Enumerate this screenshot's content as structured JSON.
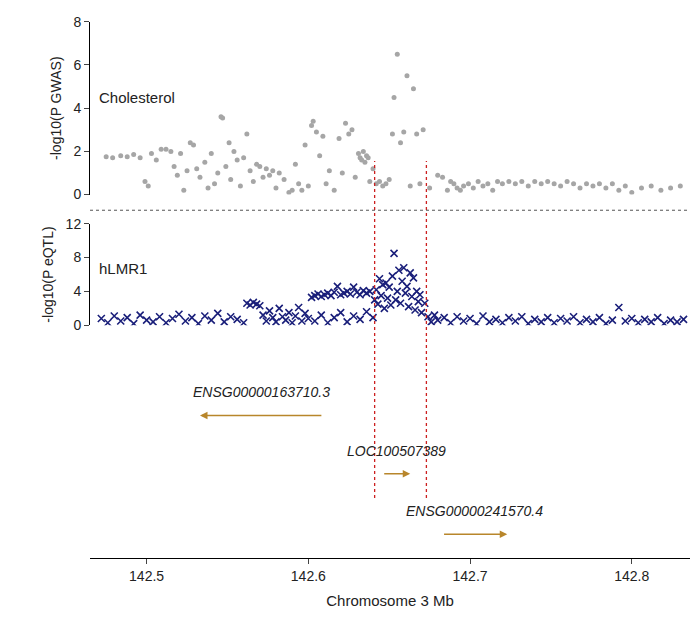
{
  "chart_data": [
    {
      "type": "scatter",
      "annotations": [
        "Cholesterol"
      ],
      "ylabel": "-log10(P GWAS)",
      "marker": "circle",
      "color": "#a6a6a6",
      "tick_labels": "y",
      "xlim": [
        142.465,
        142.836
      ],
      "ylim": [
        0,
        8
      ],
      "yticks": [
        0,
        2,
        4,
        6,
        8
      ],
      "x": [
        142.475,
        142.479,
        142.484,
        142.488,
        142.492,
        142.496,
        142.499,
        142.501,
        142.503,
        142.506,
        142.509,
        142.512,
        142.515,
        142.517,
        142.519,
        142.521,
        142.523,
        142.525,
        142.527,
        142.529,
        142.531,
        142.533,
        142.536,
        142.538,
        142.54,
        142.542,
        142.544,
        142.546,
        142.547,
        142.549,
        142.551,
        142.552,
        142.554,
        142.556,
        142.558,
        142.56,
        142.562,
        142.564,
        142.566,
        142.568,
        142.57,
        142.572,
        142.574,
        142.576,
        142.578,
        142.58,
        142.582,
        142.585,
        142.588,
        142.59,
        142.592,
        142.594,
        142.596,
        142.598,
        142.6,
        142.602,
        142.603,
        142.605,
        142.607,
        142.609,
        142.611,
        142.613,
        142.616,
        142.619,
        142.621,
        142.623,
        142.625,
        142.627,
        142.629,
        142.631,
        142.632,
        142.633,
        142.634,
        142.635,
        142.636,
        142.637,
        142.638,
        142.64,
        142.642,
        142.644,
        142.646,
        142.648,
        142.65,
        142.652,
        142.653,
        142.655,
        142.657,
        142.659,
        142.661,
        142.663,
        142.665,
        142.667,
        142.669,
        142.671,
        142.675,
        142.68,
        142.683,
        142.686,
        142.688,
        142.69,
        142.692,
        142.694,
        142.696,
        142.699,
        142.702,
        142.705,
        142.708,
        142.711,
        142.714,
        142.717,
        142.72,
        142.724,
        142.728,
        142.732,
        142.736,
        142.74,
        142.744,
        142.748,
        142.752,
        142.756,
        142.76,
        142.764,
        142.768,
        142.772,
        142.776,
        142.78,
        142.784,
        142.788,
        142.792,
        142.796,
        142.8,
        142.806,
        142.812,
        142.818,
        142.824,
        142.83
      ],
      "values": [
        1.75,
        1.7,
        1.8,
        1.75,
        1.85,
        1.7,
        0.6,
        0.4,
        1.9,
        1.6,
        2.1,
        2.1,
        2.0,
        1.3,
        0.9,
        1.9,
        0.2,
        1.1,
        2.4,
        2.3,
        1.2,
        0.8,
        1.5,
        0.3,
        1.9,
        0.5,
        1.0,
        3.6,
        3.55,
        1.3,
        2.4,
        0.7,
        2.0,
        1.6,
        0.4,
        1.7,
        2.8,
        1.1,
        0.6,
        1.4,
        1.3,
        0.8,
        1.2,
        0.9,
        1.1,
        0.3,
        1.0,
        0.7,
        0.1,
        0.2,
        1.4,
        0.5,
        0.2,
        2.3,
        0.4,
        3.2,
        3.4,
        2.9,
        1.8,
        2.7,
        0.5,
        1.1,
        0.2,
        2.6,
        1.0,
        3.3,
        2.8,
        3.0,
        0.8,
        1.9,
        1.7,
        1.6,
        2.0,
        1.5,
        1.8,
        1.7,
        0.6,
        1.2,
        0.5,
        0.6,
        0.4,
        0.5,
        0.7,
        2.8,
        4.5,
        6.5,
        2.4,
        2.9,
        5.5,
        0.4,
        4.9,
        2.8,
        0.5,
        3.0,
        0.3,
        0.9,
        0.8,
        0.2,
        0.6,
        0.5,
        0.3,
        0.2,
        0.4,
        0.5,
        0.3,
        0.6,
        0.4,
        0.5,
        0.2,
        0.6,
        0.5,
        0.6,
        0.5,
        0.6,
        0.4,
        0.6,
        0.5,
        0.6,
        0.5,
        0.4,
        0.6,
        0.5,
        0.3,
        0.5,
        0.4,
        0.5,
        0.3,
        0.5,
        0.2,
        0.4,
        0.1,
        0.3,
        0.4,
        0.2,
        0.3,
        0.4
      ]
    },
    {
      "type": "scatter",
      "annotations": [
        "hLMR1"
      ],
      "ylabel": "-log10(P eQTL)",
      "marker": "x",
      "color": "#1a1f7a",
      "tick_labels": "y",
      "xlim": [
        142.465,
        142.836
      ],
      "ylim": [
        0,
        12
      ],
      "yticks": [
        0,
        4,
        8,
        12
      ],
      "x": [
        142.472,
        142.476,
        142.48,
        142.484,
        142.488,
        142.492,
        142.496,
        142.5,
        142.504,
        142.508,
        142.512,
        142.516,
        142.52,
        142.524,
        142.528,
        142.532,
        142.536,
        142.54,
        142.544,
        142.548,
        142.552,
        142.556,
        142.56,
        142.562,
        142.564,
        142.566,
        142.568,
        142.57,
        142.572,
        142.574,
        142.576,
        142.578,
        142.58,
        142.582,
        142.584,
        142.586,
        142.588,
        142.59,
        142.592,
        142.594,
        142.596,
        142.598,
        142.6,
        142.602,
        142.604,
        142.606,
        142.608,
        142.61,
        142.612,
        142.614,
        142.616,
        142.618,
        142.62,
        142.622,
        142.624,
        142.626,
        142.628,
        142.63,
        142.632,
        142.634,
        142.636,
        142.638,
        142.604,
        142.608,
        142.612,
        142.616,
        142.62,
        142.624,
        142.628,
        142.632,
        142.636,
        142.64,
        142.641,
        142.642,
        142.643,
        142.644,
        142.645,
        142.646,
        142.647,
        142.648,
        142.649,
        142.65,
        142.651,
        142.652,
        142.653,
        142.654,
        142.655,
        142.656,
        142.657,
        142.658,
        142.659,
        142.66,
        142.661,
        142.662,
        142.663,
        142.664,
        142.665,
        142.666,
        142.667,
        142.668,
        142.669,
        142.67,
        142.672,
        142.674,
        142.676,
        142.678,
        142.68,
        142.684,
        142.688,
        142.692,
        142.696,
        142.7,
        142.704,
        142.708,
        142.712,
        142.716,
        142.72,
        142.724,
        142.728,
        142.732,
        142.736,
        142.74,
        142.744,
        142.748,
        142.752,
        142.756,
        142.76,
        142.764,
        142.768,
        142.772,
        142.776,
        142.78,
        142.784,
        142.788,
        142.792,
        142.796,
        142.8,
        142.804,
        142.808,
        142.812,
        142.816,
        142.82,
        142.824,
        142.828,
        142.832
      ],
      "values": [
        0.8,
        0.3,
        1.1,
        0.5,
        0.9,
        0.2,
        1.2,
        0.6,
        0.4,
        1.0,
        0.3,
        0.8,
        1.3,
        0.5,
        0.9,
        0.2,
        1.1,
        0.6,
        1.4,
        0.4,
        1.0,
        0.7,
        0.3,
        2.6,
        2.4,
        2.7,
        2.5,
        2.3,
        1.2,
        0.5,
        1.7,
        0.9,
        0.4,
        2.0,
        1.0,
        0.6,
        1.5,
        0.3,
        1.1,
        2.1,
        0.5,
        1.4,
        0.8,
        3.3,
        3.5,
        3.7,
        3.4,
        3.6,
        3.8,
        3.5,
        3.9,
        4.6,
        3.6,
        3.8,
        4.0,
        3.7,
        4.5,
        3.9,
        3.6,
        4.1,
        3.8,
        4.0,
        0.5,
        1.2,
        0.3,
        0.9,
        1.5,
        0.4,
        1.1,
        0.7,
        1.6,
        0.9,
        3.0,
        4.2,
        2.5,
        5.5,
        3.5,
        4.8,
        2.0,
        5.0,
        3.2,
        4.5,
        2.4,
        5.8,
        8.5,
        3.0,
        4.0,
        6.5,
        2.6,
        5.2,
        6.8,
        3.8,
        4.6,
        2.2,
        6.2,
        3.4,
        5.6,
        1.8,
        4.0,
        2.8,
        3.6,
        1.5,
        2.6,
        1.0,
        0.4,
        1.2,
        0.6,
        0.9,
        0.3,
        1.0,
        0.5,
        0.8,
        0.2,
        1.1,
        0.4,
        0.7,
        0.3,
        0.9,
        0.5,
        1.0,
        0.2,
        0.7,
        0.4,
        0.9,
        0.3,
        0.8,
        0.5,
        1.0,
        0.3,
        0.7,
        0.4,
        0.9,
        0.2,
        0.6,
        2.1,
        0.5,
        0.8,
        0.3,
        0.7,
        0.4,
        0.9,
        0.2,
        0.6,
        0.4,
        0.7
      ]
    },
    {
      "type": "genes",
      "xlabel": "Chromosome 3 Mb",
      "tick_labels": "x",
      "color": "#b8862b",
      "xlim": [
        142.465,
        142.836
      ],
      "xticks": [
        142.5,
        142.6,
        142.7,
        142.8
      ],
      "genes": [
        {
          "name": "ENSG00000163710.3",
          "start": 142.609,
          "end": 142.533
        },
        {
          "name": "LOC100507389",
          "start": 142.646,
          "end": 142.663
        },
        {
          "name": "ENSG00000241570.4",
          "start": 142.683,
          "end": 142.723
        }
      ],
      "vlines": {
        "x": [
          142.641,
          142.673
        ],
        "color": "#cc1f1f",
        "line_style": "dot"
      }
    }
  ]
}
